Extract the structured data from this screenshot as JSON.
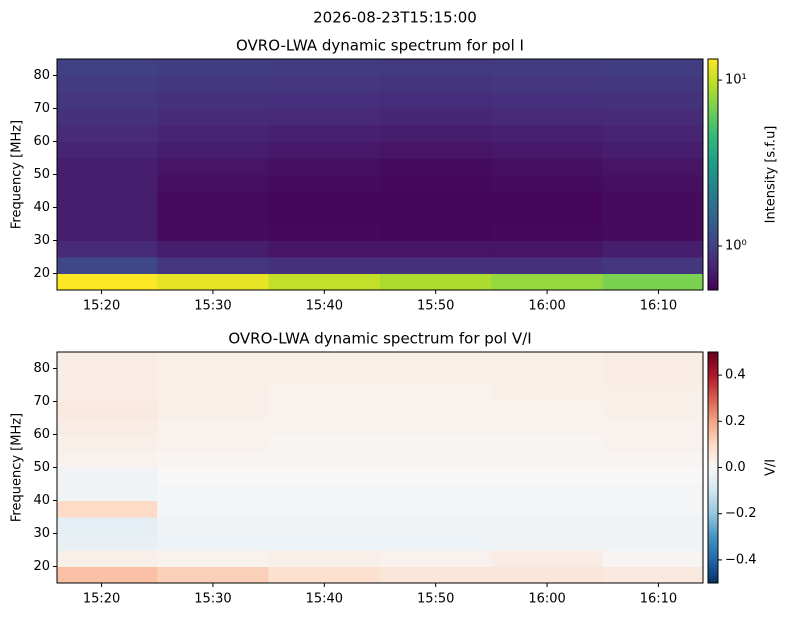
{
  "title": "2026-08-23T15:15:00",
  "chart_data": [
    {
      "type": "heatmap",
      "title": "OVRO-LWA dynamic spectrum for pol I",
      "y_label": "Frequency [MHz]",
      "colorbar_label": "Intensity [s.f.u]",
      "colormap": "viridis",
      "cscale": "log",
      "clim": [
        0.543,
        13.4
      ],
      "cticks": [
        {
          "value": 1,
          "label": "10⁰"
        },
        {
          "value": 10,
          "label": "10¹"
        }
      ],
      "xlim": [
        "15:16",
        "16:14"
      ],
      "xticks": [
        "15:20",
        "15:30",
        "15:40",
        "15:50",
        "16:00",
        "16:10"
      ],
      "ylim": [
        15,
        85
      ],
      "yticks": [
        20,
        30,
        40,
        50,
        60,
        70,
        80
      ],
      "x": [
        "15:20",
        "15:30",
        "15:40",
        "15:50",
        "16:00",
        "16:10"
      ],
      "y": [
        17.5,
        22.5,
        27.5,
        32.5,
        37.5,
        42.5,
        47.5,
        52.5,
        57.5,
        62.5,
        67.5,
        72.5,
        77.5,
        82.5
      ],
      "values": [
        [
          14,
          12,
          10,
          9,
          8,
          7
        ],
        [
          1.1,
          0.9,
          0.85,
          0.85,
          0.85,
          0.9
        ],
        [
          0.8,
          0.7,
          0.65,
          0.65,
          0.65,
          0.7
        ],
        [
          0.7,
          0.6,
          0.58,
          0.57,
          0.58,
          0.6
        ],
        [
          0.7,
          0.6,
          0.57,
          0.56,
          0.57,
          0.6
        ],
        [
          0.7,
          0.6,
          0.57,
          0.56,
          0.57,
          0.6
        ],
        [
          0.7,
          0.62,
          0.6,
          0.58,
          0.6,
          0.62
        ],
        [
          0.7,
          0.65,
          0.62,
          0.6,
          0.62,
          0.65
        ],
        [
          0.75,
          0.7,
          0.67,
          0.65,
          0.67,
          0.7
        ],
        [
          0.8,
          0.75,
          0.72,
          0.7,
          0.72,
          0.75
        ],
        [
          0.85,
          0.8,
          0.78,
          0.76,
          0.78,
          0.8
        ],
        [
          0.9,
          0.86,
          0.84,
          0.82,
          0.84,
          0.86
        ],
        [
          0.95,
          0.92,
          0.9,
          0.88,
          0.9,
          0.92
        ],
        [
          1.0,
          0.97,
          0.95,
          0.93,
          0.95,
          0.97
        ]
      ]
    },
    {
      "type": "heatmap",
      "title": "OVRO-LWA dynamic spectrum for pol V/I",
      "y_label": "Frequency [MHz]",
      "colorbar_label": "V/I",
      "colormap": "RdBu_r",
      "cscale": "linear",
      "clim": [
        -0.5,
        0.5
      ],
      "cticks": [
        {
          "value": -0.4,
          "label": "−0.4"
        },
        {
          "value": -0.2,
          "label": "−0.2"
        },
        {
          "value": 0,
          "label": "0.0"
        },
        0.2,
        0.4
      ],
      "xlim": [
        "15:16",
        "16:14"
      ],
      "xticks": [
        "15:20",
        "15:30",
        "15:40",
        "15:50",
        "16:00",
        "16:10"
      ],
      "ylim": [
        15,
        85
      ],
      "yticks": [
        20,
        30,
        40,
        50,
        60,
        70,
        80
      ],
      "x": [
        "15:20",
        "15:30",
        "15:40",
        "15:50",
        "16:00",
        "16:10"
      ],
      "y": [
        17.5,
        22.5,
        27.5,
        32.5,
        37.5,
        42.5,
        47.5,
        52.5,
        57.5,
        62.5,
        67.5,
        72.5,
        77.5,
        82.5
      ],
      "values": [
        [
          0.15,
          0.12,
          0.08,
          0.06,
          0.06,
          0.05
        ],
        [
          0.03,
          0.02,
          0.03,
          0.02,
          0.04,
          0.01
        ],
        [
          -0.04,
          -0.03,
          -0.03,
          -0.03,
          -0.02,
          -0.02
        ],
        [
          -0.05,
          -0.02,
          -0.02,
          -0.02,
          -0.02,
          -0.02
        ],
        [
          0.1,
          -0.01,
          -0.01,
          -0.01,
          -0.01,
          -0.01
        ],
        [
          -0.02,
          -0.01,
          -0.01,
          -0.01,
          -0.01,
          -0.01
        ],
        [
          -0.02,
          0.0,
          0.0,
          0.0,
          0.0,
          0.0
        ],
        [
          0.02,
          0.01,
          0.01,
          0.01,
          0.01,
          0.01
        ],
        [
          0.03,
          0.02,
          0.01,
          0.01,
          0.01,
          0.02
        ],
        [
          0.04,
          0.02,
          0.02,
          0.02,
          0.02,
          0.02
        ],
        [
          0.05,
          0.03,
          0.02,
          0.02,
          0.02,
          0.03
        ],
        [
          0.04,
          0.03,
          0.02,
          0.02,
          0.03,
          0.03
        ],
        [
          0.04,
          0.03,
          0.03,
          0.03,
          0.03,
          0.04
        ],
        [
          0.04,
          0.03,
          0.03,
          0.03,
          0.03,
          0.04
        ]
      ]
    }
  ]
}
